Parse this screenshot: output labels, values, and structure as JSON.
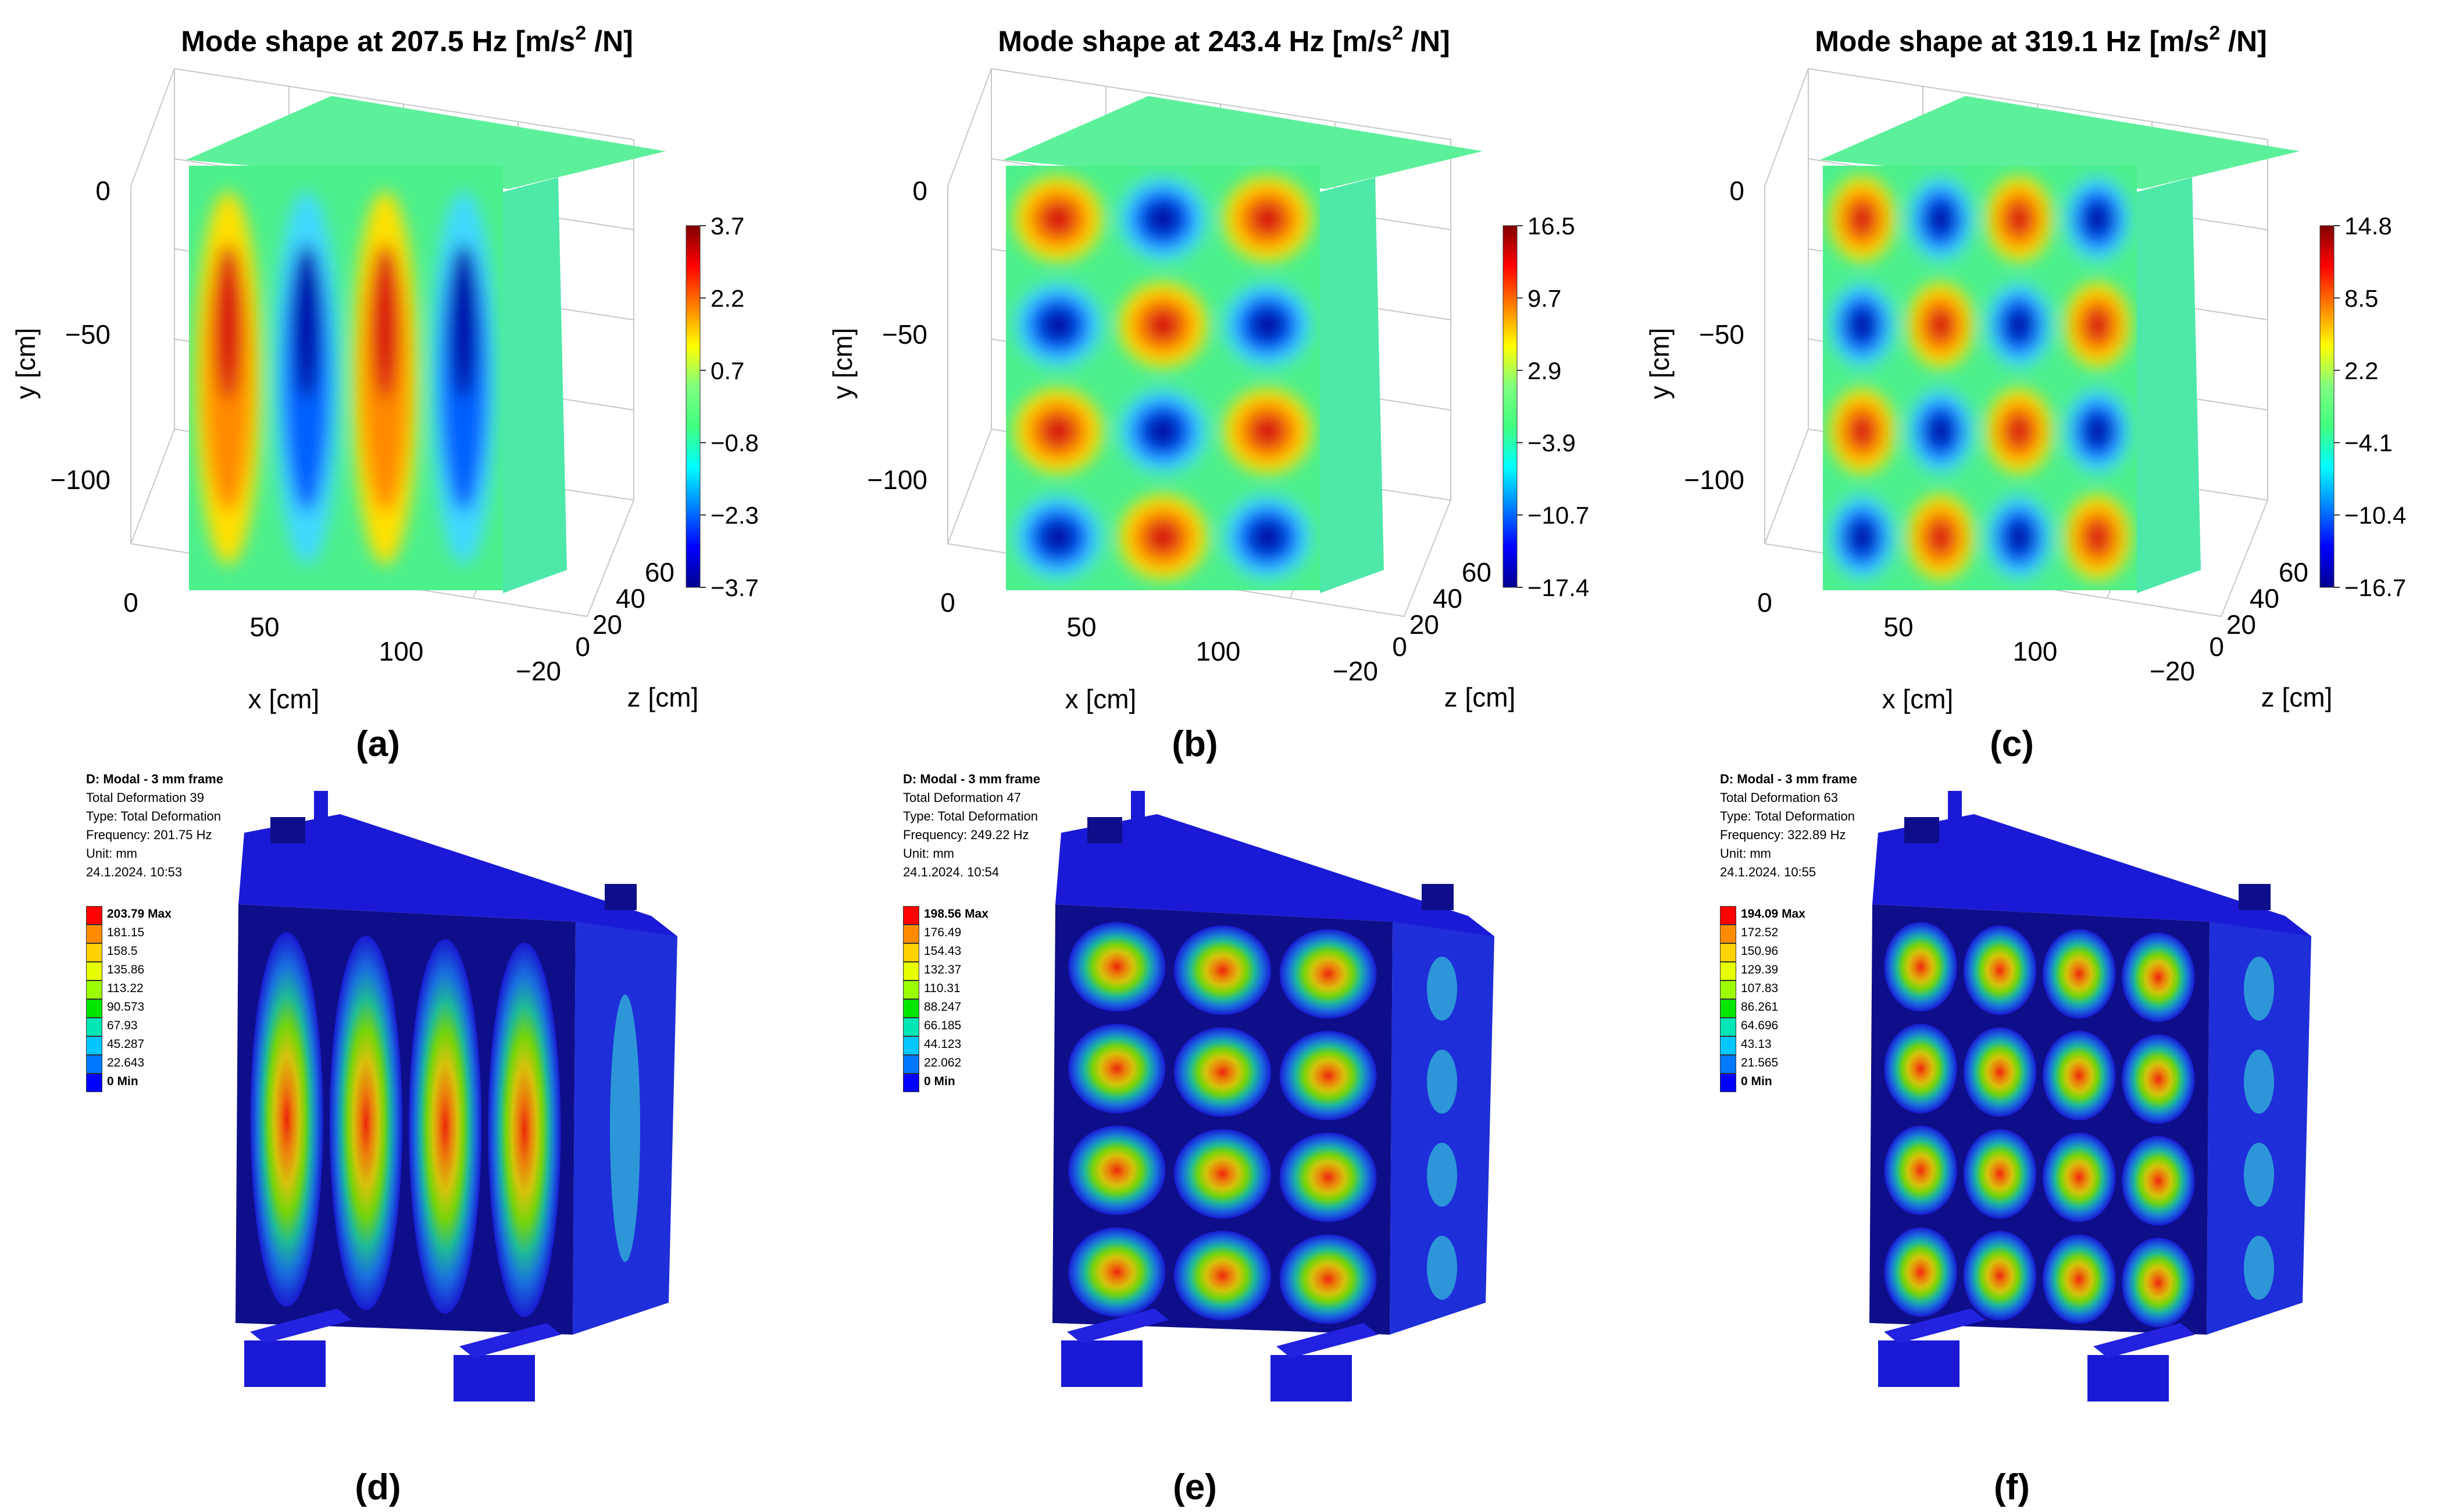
{
  "plots": [
    {
      "id": "a",
      "title": "Mode shape at 207.5 Hz [m/s",
      "title_sup": "2",
      "title_tail": " /N]",
      "y_axis": {
        "label": "y [cm]",
        "ticks": [
          "0",
          "−50",
          "−100"
        ]
      },
      "x_axis": {
        "label": "x [cm]",
        "ticks": [
          "0",
          "50",
          "100"
        ]
      },
      "z_axis": {
        "label": "z [cm]",
        "ticks": [
          "60",
          "40",
          "20",
          "0",
          "−20"
        ]
      },
      "colorbar_ticks": [
        "3.7",
        "2.2",
        "0.7",
        "−0.8",
        "−2.3",
        "−3.7"
      ],
      "caption": "(a)",
      "columns": 4,
      "rows": 1
    },
    {
      "id": "b",
      "title": "Mode shape at 243.4 Hz [m/s",
      "title_sup": "2",
      "title_tail": " /N]",
      "y_axis": {
        "label": "y [cm]",
        "ticks": [
          "0",
          "−50",
          "−100"
        ]
      },
      "x_axis": {
        "label": "x [cm]",
        "ticks": [
          "0",
          "50",
          "100"
        ]
      },
      "z_axis": {
        "label": "z [cm]",
        "ticks": [
          "60",
          "40",
          "20",
          "0",
          "−20"
        ]
      },
      "colorbar_ticks": [
        "16.5",
        "9.7",
        "2.9",
        "−3.9",
        "−10.7",
        "−17.4"
      ],
      "caption": "(b)",
      "columns": 3,
      "rows": 4
    },
    {
      "id": "c",
      "title": "Mode shape at 319.1 Hz [m/s",
      "title_sup": "2",
      "title_tail": " /N]",
      "y_axis": {
        "label": "y [cm]",
        "ticks": [
          "0",
          "−50",
          "−100"
        ]
      },
      "x_axis": {
        "label": "x [cm]",
        "ticks": [
          "0",
          "50",
          "100"
        ]
      },
      "z_axis": {
        "label": "z [cm]",
        "ticks": [
          "60",
          "40",
          "20",
          "0",
          "−20"
        ]
      },
      "colorbar_ticks": [
        "14.8",
        "8.5",
        "2.2",
        "−4.1",
        "−10.4",
        "−16.7"
      ],
      "caption": "(c)",
      "columns": 4,
      "rows": 4
    }
  ],
  "fea": [
    {
      "id": "d",
      "header": [
        "D: Modal - 3 mm frame",
        "Total Deformation 39",
        "Type: Total Deformation",
        "Frequency: 201.75 Hz",
        "Unit: mm",
        "24.1.2024. 10:53"
      ],
      "legend": [
        "203.79 Max",
        "181.15",
        "158.5",
        "135.86",
        "113.22",
        "90.573",
        "67.93",
        "45.287",
        "22.643",
        "0 Min"
      ],
      "caption": "(d)",
      "columns": 4,
      "rows": 1
    },
    {
      "id": "e",
      "header": [
        "D: Modal - 3 mm frame",
        "Total Deformation 47",
        "Type: Total Deformation",
        "Frequency: 249.22 Hz",
        "Unit: mm",
        "24.1.2024. 10:54"
      ],
      "legend": [
        "198.56 Max",
        "176.49",
        "154.43",
        "132.37",
        "110.31",
        "88.247",
        "66.185",
        "44.123",
        "22.062",
        "0 Min"
      ],
      "caption": "(e)",
      "columns": 3,
      "rows": 4
    },
    {
      "id": "f",
      "header": [
        "D: Modal - 3 mm frame",
        "Total Deformation 63",
        "Type: Total Deformation",
        "Frequency: 322.89 Hz",
        "Unit: mm",
        "24.1.2024. 10:55"
      ],
      "legend": [
        "194.09 Max",
        "172.52",
        "150.96",
        "129.39",
        "107.83",
        "86.261",
        "64.696",
        "43.13",
        "21.565",
        "0 Min"
      ],
      "caption": "(f)",
      "columns": 4,
      "rows": 4
    }
  ],
  "colors": {
    "jet": [
      "#00008f",
      "#0000ff",
      "#0080ff",
      "#00ffff",
      "#40ff80",
      "#80ff80",
      "#ffff00",
      "#ff8000",
      "#ff0000",
      "#800000"
    ],
    "fea_legend": [
      "#ff0000",
      "#ff8c00",
      "#ffd200",
      "#e6ff00",
      "#9bff00",
      "#00e600",
      "#00e6b4",
      "#00c8ff",
      "#0078ff",
      "#0000ff"
    ],
    "fea_body": "#1a1ad6",
    "fea_dark": "#0e0e8a"
  }
}
